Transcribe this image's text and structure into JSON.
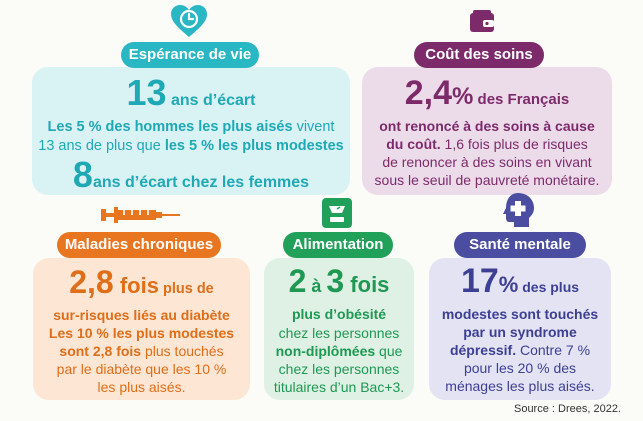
{
  "colors": {
    "teal": "#29b7c3",
    "teal_text": "#1fa9b5",
    "teal_bg": "#d9f2f4",
    "plum": "#7c2a6a",
    "plum_text": "#7c2a6a",
    "plum_bg": "#ecdcea",
    "orange": "#e8751f",
    "orange_text": "#e06d17",
    "orange_bg": "#fde6d4",
    "green": "#21a05a",
    "green_text": "#1f9853",
    "green_bg": "#dff1e4",
    "purple": "#4a4da0",
    "purple_text": "#3d3f92",
    "purple_bg": "#e3e3f3"
  },
  "esperance": {
    "title": "Espérance de vie",
    "icon": "heart-clock-icon",
    "n1": "13",
    "u1": " ans d’écart",
    "l2a": "Les 5 % des hommes les plus aisés",
    "l2b": " vivent",
    "l3a": "13 ans de plus que ",
    "l3b": "les 5 % les plus modestes",
    "n2": "8",
    "u2": "ans d’écart chez les femmes"
  },
  "cout": {
    "title": "Coût des soins",
    "icon": "wallet-icon",
    "n1": "2,4",
    "u1": "%",
    "t1": " des Français",
    "l2": "ont renoncé à des soins à cause",
    "l3a": "du coût.",
    "l3b": " 1,6 fois plus de risques",
    "l4": "de renoncer à des soins en vivant",
    "l5": "sous le seuil de pauvreté monétaire."
  },
  "maladies": {
    "title": "Maladies chroniques",
    "icon": "syringe-icon",
    "n1": "2,8",
    "u1": " fois",
    "t1": " plus de",
    "l2": "sur-risques liés au diabète",
    "l3": "Les 10 % les plus modestes",
    "l4a": "sont 2,8 fois ",
    "l4b": "plus touchés",
    "l5": "par le diabète que les 10 %",
    "l6": "les plus aisés."
  },
  "alimentation": {
    "title": "Alimentation",
    "icon": "scale-icon",
    "n1": "2",
    "t1": " à ",
    "n2": "3",
    "u2": " fois",
    "l2": "plus d’obésité",
    "l3": "chez les personnes",
    "l4": "non-diplômées",
    "l4b": " que",
    "l5": "chez les personnes",
    "l6": "titulaires d’un Bac+3."
  },
  "sante": {
    "title": "Santé mentale",
    "icon": "head-cross-icon",
    "n1": "17",
    "u1": "%",
    "t1": " des plus",
    "l2": "modestes sont touchés",
    "l3": "par un syndrome",
    "l4a": "dépressif.",
    "l4b": " Contre 7 %",
    "l5": "pour les 20 % des",
    "l6": "ménages les plus aisés."
  },
  "source": "Source : Drees, 2022."
}
